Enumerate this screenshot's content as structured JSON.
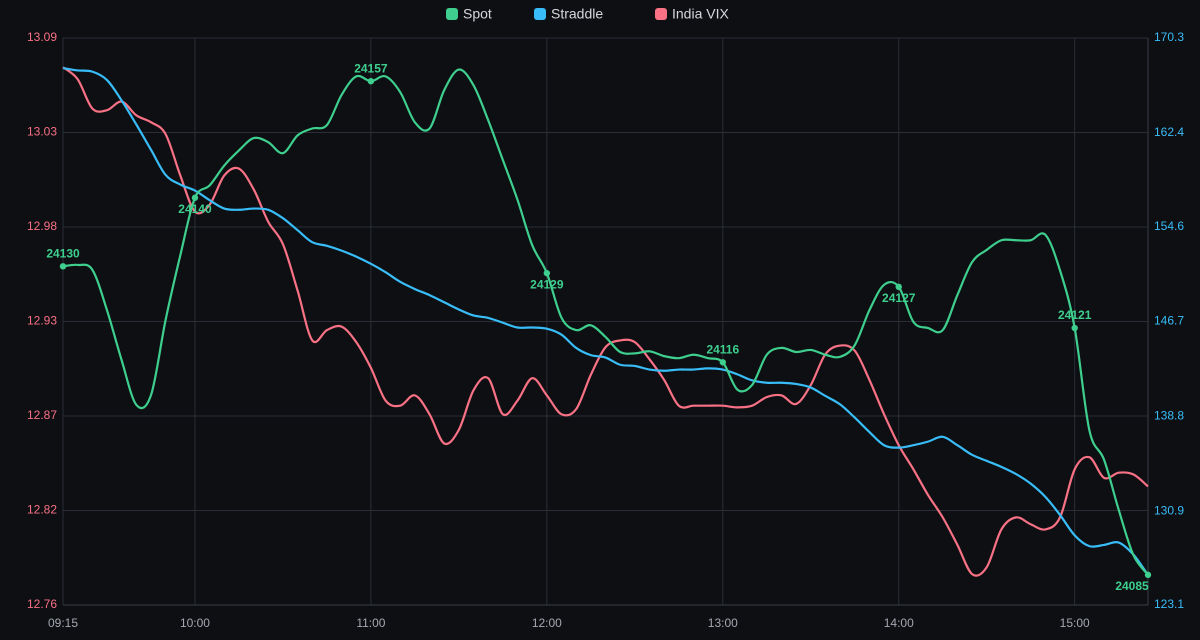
{
  "chart_data": {
    "type": "line",
    "x": [
      "09:15",
      "09:20",
      "09:25",
      "09:30",
      "09:35",
      "09:40",
      "09:45",
      "09:50",
      "09:55",
      "10:00",
      "10:05",
      "10:10",
      "10:15",
      "10:20",
      "10:25",
      "10:30",
      "10:35",
      "10:40",
      "10:45",
      "10:50",
      "10:55",
      "11:00",
      "11:05",
      "11:10",
      "11:15",
      "11:20",
      "11:25",
      "11:30",
      "11:35",
      "11:40",
      "11:45",
      "11:50",
      "11:55",
      "12:00",
      "12:05",
      "12:10",
      "12:15",
      "12:20",
      "12:25",
      "12:30",
      "12:35",
      "12:40",
      "12:45",
      "12:50",
      "12:55",
      "13:00",
      "13:05",
      "13:10",
      "13:15",
      "13:20",
      "13:25",
      "13:30",
      "13:35",
      "13:40",
      "13:45",
      "13:50",
      "13:55",
      "14:00",
      "14:05",
      "14:10",
      "14:15",
      "14:20",
      "14:25",
      "14:30",
      "14:35",
      "14:40",
      "14:45",
      "14:50",
      "14:55",
      "15:00",
      "15:05",
      "15:10",
      "15:15",
      "15:20",
      "15:25"
    ],
    "xlim": [
      "09:15",
      "15:25"
    ],
    "xticks": [
      "09:15",
      "10:00",
      "11:00",
      "12:00",
      "13:00",
      "14:00",
      "15:00"
    ],
    "ylim": [
      12.76,
      13.09
    ],
    "yticks": [
      12.76,
      {
        "value": 12.815,
        "label": "12.82"
      },
      12.87,
      {
        "value": 12.925,
        "label": "12.93"
      },
      12.98,
      {
        "value": 13.035,
        "label": "13.03"
      },
      13.09
    ],
    "y2lim": [
      123.1,
      170.3
    ],
    "y2ticks": [
      123.1,
      130.9,
      138.8,
      146.7,
      154.6,
      162.4,
      170.3
    ],
    "y3lim": [
      24080.6,
      24163.3
    ],
    "grid": true,
    "legend": "top",
    "series": [
      {
        "name": "Spot",
        "color": "#3ecf8e",
        "axis": "y3",
        "values": [
          24130,
          24130.2,
          24129.5,
          24123.6,
          24116.3,
          24109.8,
          24111.2,
          24122.2,
          24131.6,
          24140,
          24141.8,
          24144.7,
          24146.9,
          24148.7,
          24148.1,
          24146.5,
          24149.1,
          24150.1,
          24150.6,
          24155.0,
          24157.7,
          24157,
          24157.7,
          24155.4,
          24151.0,
          24150.1,
          24155.7,
          24158.7,
          24156.4,
          24151.3,
          24145.5,
          24139.7,
          24133.1,
          24129,
          24122.5,
          24120.7,
          24121.4,
          24119.7,
          24117.5,
          24117.3,
          24117.6,
          24116.9,
          24116.6,
          24117.1,
          24116.6,
          24116,
          24112.0,
          24112.7,
          24117.1,
          24118.1,
          24117.5,
          24117.8,
          24117.1,
          24116.8,
          24118.5,
          24123.6,
          24127.3,
          24127,
          24121.9,
          24121.0,
          24120.7,
          24125.8,
          24130.6,
          24132.4,
          24133.8,
          24133.8,
          24133.8,
          24134.6,
          24129.4,
          24121,
          24106.1,
          24101.8,
          24094.5,
          24087.9,
          24085
        ],
        "value_labels": [
          "24130",
          null,
          null,
          null,
          null,
          null,
          null,
          null,
          null,
          "24140",
          null,
          null,
          null,
          null,
          null,
          null,
          null,
          null,
          null,
          null,
          null,
          "24157",
          null,
          null,
          null,
          null,
          null,
          null,
          null,
          null,
          null,
          null,
          null,
          "24129",
          null,
          null,
          null,
          null,
          null,
          null,
          null,
          null,
          null,
          null,
          null,
          "24116",
          null,
          null,
          null,
          null,
          null,
          null,
          null,
          null,
          null,
          null,
          null,
          "24127",
          null,
          null,
          null,
          null,
          null,
          null,
          null,
          null,
          null,
          null,
          null,
          "24121",
          null,
          null,
          null,
          null,
          "24085"
        ]
      },
      {
        "name": "Straddle",
        "color": "#38bdf8",
        "axis": "y2",
        "values": [
          167.8,
          167.6,
          167.5,
          166.8,
          165.1,
          163.1,
          161.0,
          158.9,
          158.1,
          157.6,
          156.8,
          156.1,
          156.0,
          156.1,
          156.0,
          155.3,
          154.3,
          153.3,
          153.0,
          152.6,
          152.1,
          151.5,
          150.8,
          150.0,
          149.4,
          148.9,
          148.3,
          147.7,
          147.2,
          147.0,
          146.6,
          146.2,
          146.2,
          146.1,
          145.6,
          144.5,
          143.9,
          143.7,
          143.1,
          143.0,
          142.7,
          142.6,
          142.7,
          142.7,
          142.8,
          142.7,
          142.3,
          141.8,
          141.6,
          141.6,
          141.5,
          141.2,
          140.5,
          139.8,
          138.7,
          137.5,
          136.4,
          136.2,
          136.4,
          136.7,
          137.1,
          136.4,
          135.6,
          135.1,
          134.6,
          134.0,
          133.2,
          132.1,
          130.6,
          128.9,
          128.0,
          128.1,
          128.3,
          127.3,
          125.6
        ]
      },
      {
        "name": "India VIX",
        "color": "#f87185",
        "axis": "y",
        "values": [
          13.073,
          13.066,
          13.049,
          13.048,
          13.053,
          13.045,
          13.041,
          13.034,
          13.01,
          12.989,
          12.993,
          13.01,
          13.014,
          13.002,
          12.983,
          12.97,
          12.943,
          12.914,
          12.92,
          12.922,
          12.913,
          12.898,
          12.879,
          12.876,
          12.882,
          12.871,
          12.854,
          12.862,
          12.885,
          12.892,
          12.871,
          12.879,
          12.892,
          12.882,
          12.871,
          12.874,
          12.894,
          12.91,
          12.914,
          12.913,
          12.903,
          12.891,
          12.876,
          12.876,
          12.876,
          12.876,
          12.875,
          12.876,
          12.881,
          12.882,
          12.877,
          12.888,
          12.906,
          12.911,
          12.908,
          12.891,
          12.871,
          12.853,
          12.839,
          12.824,
          12.811,
          12.795,
          12.778,
          12.782,
          12.804,
          12.811,
          12.807,
          12.804,
          12.811,
          12.839,
          12.846,
          12.834,
          12.837,
          12.836,
          12.829
        ]
      }
    ]
  }
}
